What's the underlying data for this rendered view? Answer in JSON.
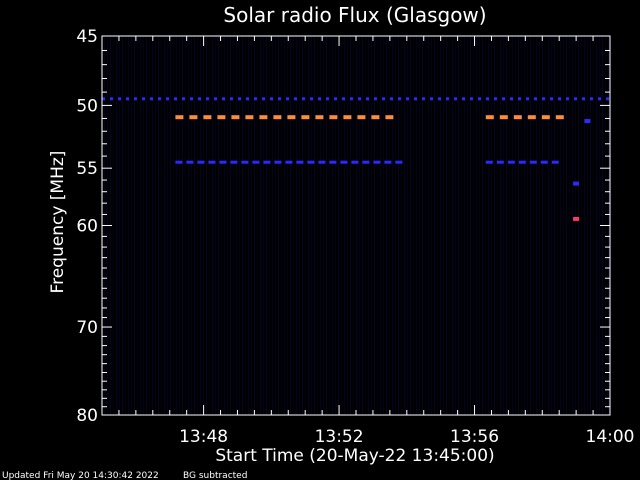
{
  "chart_data": {
    "type": "heatmap",
    "title": "Solar radio Flux (Glasgow)",
    "xlabel": "Start Time (20-May-22 13:45:00)",
    "ylabel": "Frequency [MHz]",
    "x_range_minutes": [
      0,
      15
    ],
    "xlim": [
      "13:45",
      "14:00"
    ],
    "ylim": [
      45,
      80
    ],
    "y_scale": "log",
    "x_ticks": [
      {
        "minute": 3,
        "label": "13:48"
      },
      {
        "minute": 7,
        "label": "13:52"
      },
      {
        "minute": 11,
        "label": "13:56"
      },
      {
        "minute": 15,
        "label": "14:00"
      }
    ],
    "y_ticks": [
      {
        "value": 45,
        "label": "45"
      },
      {
        "value": 50,
        "label": "50"
      },
      {
        "value": 55,
        "label": "55"
      },
      {
        "value": 60,
        "label": "60"
      },
      {
        "value": 70,
        "label": "70"
      },
      {
        "value": 80,
        "label": "80"
      }
    ],
    "emission_bands": [
      {
        "frequency_mhz": 49.5,
        "start": "13:45",
        "end": "14:00",
        "level": "low",
        "color": "#2a2aff"
      },
      {
        "frequency_mhz": 50.9,
        "start": "13:47:10",
        "end": "13:53:55",
        "level": "high",
        "color": "#ff8c3a"
      },
      {
        "frequency_mhz": 50.9,
        "start": "13:56:20",
        "end": "13:58:40",
        "level": "high",
        "color": "#ff8c3a"
      },
      {
        "frequency_mhz": 54.5,
        "start": "13:47:10",
        "end": "13:53:55",
        "level": "low",
        "color": "#2a2aff"
      },
      {
        "frequency_mhz": 54.5,
        "start": "13:56:20",
        "end": "13:58:40",
        "level": "low",
        "color": "#2a2aff"
      }
    ],
    "spots": [
      {
        "time": "13:59:00",
        "frequency_mhz": 56.3,
        "color": "#2a2aff"
      },
      {
        "time": "13:59:00",
        "frequency_mhz": 59.4,
        "color": "#ff3a60"
      },
      {
        "time": "13:59:20",
        "frequency_mhz": 51.2,
        "color": "#2a2aff"
      }
    ],
    "colors": {
      "background": "#000000",
      "axes": "#ffffff",
      "low": "#2a2aff",
      "high": "#ff8c3a"
    }
  },
  "footer": {
    "updated": "Updated Fri May 20 14:30:42 2022",
    "note": "BG subtracted"
  }
}
